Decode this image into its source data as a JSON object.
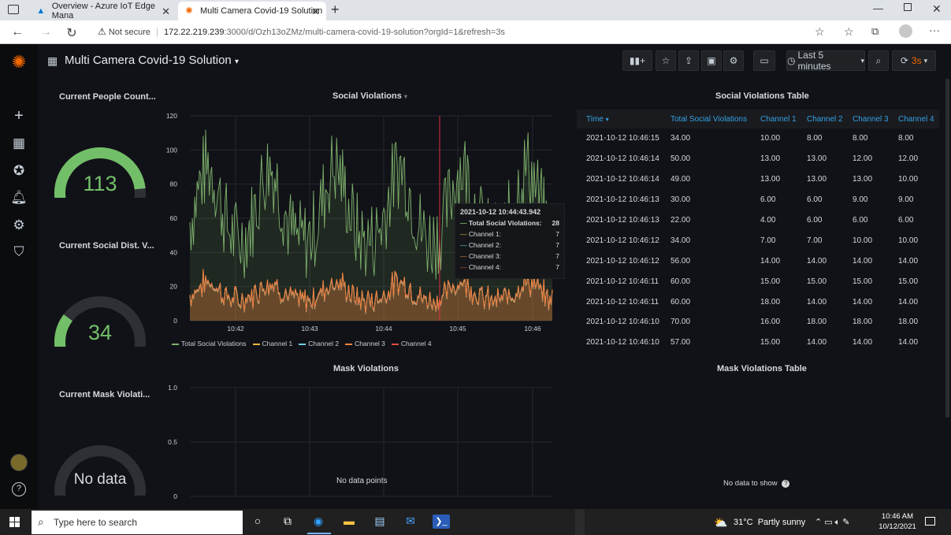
{
  "browser": {
    "tabs": [
      {
        "title": "Overview - Azure IoT Edge Mana",
        "icon": "azure-icon"
      },
      {
        "title": "Multi Camera Covid-19 Solution",
        "icon": "grafana-icon"
      }
    ],
    "security": "Not secure",
    "url_host": "172.22.219.239",
    "url_path": ":3000/d/Ozh13oZMz/multi-camera-covid-19-solution?orgId=1&refresh=3s"
  },
  "dashboard": {
    "title": "Multi Camera Covid-19 Solution",
    "time_range": "Last 5 minutes",
    "refresh": "3s"
  },
  "panels": {
    "people_count": {
      "title": "Current People Count...",
      "value": "113",
      "fraction": 0.85
    },
    "social_dist": {
      "title": "Current Social Dist. V...",
      "value": "34",
      "fraction": 0.28
    },
    "mask": {
      "title": "Current Mask Violati...",
      "value": "No data"
    },
    "social_chart": {
      "title": "Social Violations"
    },
    "social_table": {
      "title": "Social Violations Table"
    },
    "mask_chart": {
      "title": "Mask Violations",
      "empty": "No data points"
    },
    "mask_table": {
      "title": "Mask Violations Table",
      "empty": "No data to show"
    }
  },
  "chart_data": [
    {
      "type": "line",
      "title": "Social Violations",
      "ylim": [
        0,
        120
      ],
      "yticks": [
        "0",
        "20",
        "40",
        "60",
        "80",
        "100",
        "120"
      ],
      "xticks": [
        "10:42",
        "10:43",
        "10:44",
        "10:45",
        "10:46"
      ],
      "series": [
        {
          "name": "Total Social Violations",
          "color": "#7eb26d"
        },
        {
          "name": "Channel 1",
          "color": "#eab839"
        },
        {
          "name": "Channel 2",
          "color": "#6ed0e0"
        },
        {
          "name": "Channel 3",
          "color": "#ef843c"
        },
        {
          "name": "Channel 4",
          "color": "#e24d42"
        }
      ],
      "cursor_time": "10:44:43.942"
    },
    {
      "type": "line",
      "title": "Mask Violations",
      "ylim": [
        0,
        1.0
      ],
      "yticks": [
        "0",
        "0.5",
        "1.0"
      ],
      "series": []
    }
  ],
  "tooltip": {
    "time": "2021-10-12 10:44:43.942",
    "rows": [
      {
        "label": "Total Social Violations:",
        "value": "28",
        "color": "#7eb26d"
      },
      {
        "label": "Channel 1:",
        "value": "7",
        "color": "#eab839"
      },
      {
        "label": "Channel 2:",
        "value": "7",
        "color": "#6ed0e0"
      },
      {
        "label": "Channel 3:",
        "value": "7",
        "color": "#ef843c"
      },
      {
        "label": "Channel 4:",
        "value": "7",
        "color": "#e24d42"
      }
    ]
  },
  "table": {
    "headers": [
      "Time",
      "Total Social Violations",
      "Channel 1",
      "Channel 2",
      "Channel 3",
      "Channel 4"
    ],
    "rows": [
      [
        "2021-10-12 10:46:15",
        "34.00",
        "10.00",
        "8.00",
        "8.00",
        "8.00"
      ],
      [
        "2021-10-12 10:46:14",
        "50.00",
        "13.00",
        "13.00",
        "12.00",
        "12.00"
      ],
      [
        "2021-10-12 10:46:14",
        "49.00",
        "13.00",
        "13.00",
        "13.00",
        "10.00"
      ],
      [
        "2021-10-12 10:46:13",
        "30.00",
        "6.00",
        "6.00",
        "9.00",
        "9.00"
      ],
      [
        "2021-10-12 10:46:13",
        "22.00",
        "4.00",
        "6.00",
        "6.00",
        "6.00"
      ],
      [
        "2021-10-12 10:46:12",
        "34.00",
        "7.00",
        "7.00",
        "10.00",
        "10.00"
      ],
      [
        "2021-10-12 10:46:12",
        "56.00",
        "14.00",
        "14.00",
        "14.00",
        "14.00"
      ],
      [
        "2021-10-12 10:46:11",
        "60.00",
        "15.00",
        "15.00",
        "15.00",
        "15.00"
      ],
      [
        "2021-10-12 10:46:11",
        "60.00",
        "18.00",
        "14.00",
        "14.00",
        "14.00"
      ],
      [
        "2021-10-12 10:46:10",
        "70.00",
        "16.00",
        "18.00",
        "18.00",
        "18.00"
      ],
      [
        "2021-10-12 10:46:10",
        "57.00",
        "15.00",
        "14.00",
        "14.00",
        "14.00"
      ]
    ]
  },
  "taskbar": {
    "search_placeholder": "Type here to search",
    "weather": "31°C  Partly sunny",
    "time": "10:46 AM",
    "date": "10/12/2021"
  }
}
